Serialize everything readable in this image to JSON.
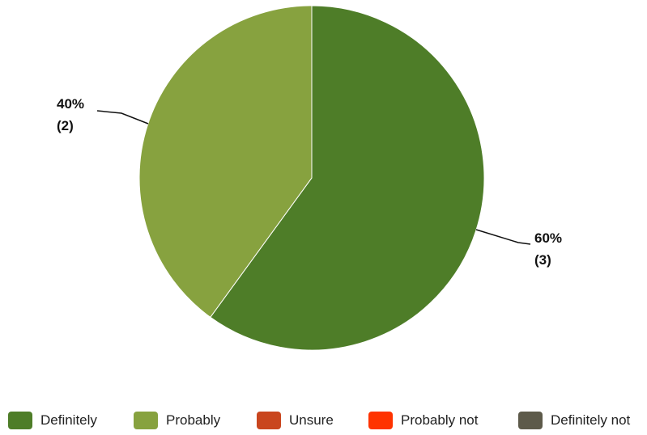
{
  "chart_data": {
    "type": "pie",
    "title": "",
    "categories": [
      "Definitely",
      "Probably",
      "Unsure",
      "Probably not",
      "Definitely not"
    ],
    "values": [
      3,
      2,
      0,
      0,
      0
    ],
    "percentages": [
      "60%",
      "40%",
      "0%",
      "0%",
      "0%"
    ],
    "colors": [
      "#4e7d28",
      "#87a23f",
      "#c9461e",
      "#ff3300",
      "#5d5a4a"
    ],
    "data_labels": [
      {
        "category": "Definitely",
        "percent": "60%",
        "count": "(3)"
      },
      {
        "category": "Probably",
        "percent": "40%",
        "count": "(2)"
      }
    ],
    "legend_position": "bottom"
  }
}
